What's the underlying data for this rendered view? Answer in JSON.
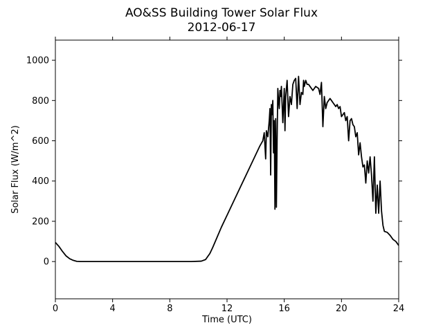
{
  "chart_data": {
    "type": "line",
    "title": "AO&SS Building Tower Solar Flux",
    "subtitle": "2012-06-17",
    "xlabel": "Time (UTC)",
    "ylabel": "Solar Flux (W/m^2)",
    "xlim": [
      0,
      24
    ],
    "ylim": [
      -185,
      1100
    ],
    "xticks": [
      0,
      4,
      8,
      12,
      16,
      20,
      24
    ],
    "yticks": [
      0,
      200,
      400,
      600,
      800,
      1000
    ],
    "grid": false,
    "line_color": "#000000",
    "series": [
      {
        "x": [
          0.0,
          0.25,
          0.5,
          0.75,
          1.0,
          1.25,
          1.5,
          1.75,
          2.0,
          4.0,
          6.0,
          8.0,
          9.5,
          10.2,
          10.5,
          10.8,
          11.0,
          11.3,
          11.6,
          12.0,
          12.4,
          12.8,
          13.2,
          13.6,
          14.0,
          14.3,
          14.5,
          14.6,
          14.7,
          14.75,
          14.85,
          14.95,
          15.0,
          15.05,
          15.1,
          15.15,
          15.2,
          15.25,
          15.3,
          15.35,
          15.4,
          15.45,
          15.5,
          15.55,
          15.6,
          15.65,
          15.7,
          15.75,
          15.8,
          15.9,
          16.0,
          16.05,
          16.1,
          16.2,
          16.3,
          16.4,
          16.5,
          16.6,
          16.7,
          16.8,
          16.9,
          17.0,
          17.1,
          17.2,
          17.3,
          17.35,
          17.4,
          17.5,
          17.6,
          17.7,
          17.8,
          17.9,
          18.0,
          18.2,
          18.4,
          18.5,
          18.6,
          18.7,
          18.8,
          18.9,
          19.0,
          19.1,
          19.2,
          19.3,
          19.4,
          19.5,
          19.6,
          19.7,
          19.8,
          19.9,
          20.0,
          20.2,
          20.3,
          20.4,
          20.5,
          20.6,
          20.7,
          20.8,
          20.9,
          21.0,
          21.1,
          21.2,
          21.3,
          21.4,
          21.5,
          21.6,
          21.7,
          21.8,
          21.9,
          22.0,
          22.1,
          22.2,
          22.3,
          22.4,
          22.5,
          22.6,
          22.7,
          22.8,
          22.9,
          23.0,
          23.2,
          23.4,
          23.6,
          23.8,
          24.0
        ],
        "y": [
          95,
          75,
          50,
          28,
          14,
          6,
          1,
          0,
          0,
          0,
          0,
          0,
          0,
          2,
          10,
          40,
          70,
          120,
          170,
          230,
          290,
          350,
          410,
          470,
          530,
          575,
          600,
          640,
          510,
          650,
          620,
          700,
          760,
          430,
          780,
          730,
          800,
          540,
          700,
          260,
          710,
          270,
          600,
          860,
          800,
          760,
          850,
          820,
          870,
          690,
          860,
          650,
          820,
          900,
          720,
          820,
          780,
          880,
          900,
          910,
          760,
          920,
          780,
          840,
          830,
          900,
          870,
          900,
          880,
          880,
          870,
          860,
          850,
          870,
          860,
          830,
          890,
          670,
          820,
          760,
          790,
          800,
          810,
          800,
          790,
          780,
          770,
          780,
          760,
          770,
          720,
          740,
          700,
          720,
          600,
          700,
          710,
          680,
          670,
          620,
          640,
          530,
          590,
          520,
          470,
          480,
          390,
          500,
          440,
          520,
          430,
          300,
          520,
          240,
          380,
          240,
          400,
          250,
          180,
          150,
          145,
          130,
          110,
          100,
          80
        ]
      }
    ]
  }
}
